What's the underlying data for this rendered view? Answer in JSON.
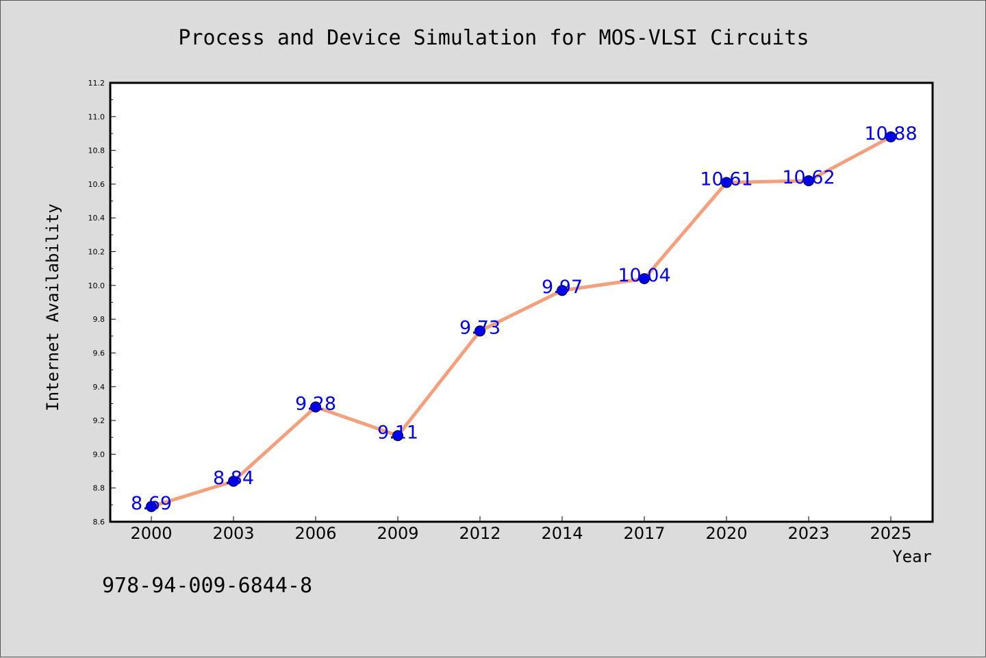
{
  "chart_data": {
    "type": "line",
    "title": "Process and Device Simulation for MOS-VLSI Circuits",
    "xlabel": "Year",
    "ylabel": "Internet Availability",
    "categories": [
      "2000",
      "2003",
      "2006",
      "2009",
      "2012",
      "2014",
      "2017",
      "2020",
      "2023",
      "2025"
    ],
    "series": [
      {
        "values": [
          8.69,
          8.84,
          9.28,
          9.11,
          9.73,
          9.97,
          10.04,
          10.61,
          10.62,
          10.88
        ],
        "data_labels": [
          "8.69",
          "8.84",
          "9.28",
          "9.11",
          "9.73",
          "9.97",
          "10.04",
          "10.61",
          "10.62",
          "10.88"
        ]
      }
    ],
    "ylim": [
      8.6,
      11.2
    ],
    "yticks": [
      "8.6",
      "8.8",
      "9.0",
      "9.2",
      "9.4",
      "9.6",
      "9.8",
      "10.0",
      "10.2",
      "10.4",
      "10.6",
      "10.8",
      "11.0",
      "11.2"
    ],
    "grid": false,
    "legend": "none",
    "colors": {
      "line": "#f4a07c",
      "marker": "#0000ee",
      "data_label": "#0000ee",
      "background": "#dcdcdc",
      "plot_area": "#ffffff"
    }
  },
  "footer_text": "978-94-009-6844-8"
}
